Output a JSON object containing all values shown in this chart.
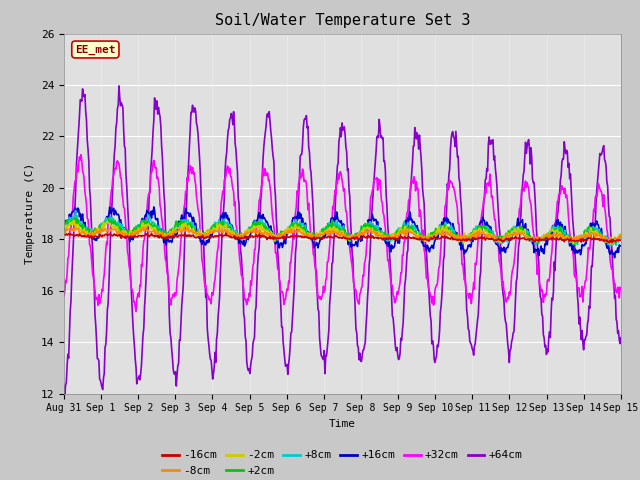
{
  "title": "Soil/Water Temperature Set 3",
  "xlabel": "Time",
  "ylabel": "Temperature (C)",
  "ylim": [
    12,
    26
  ],
  "yticks": [
    12,
    14,
    16,
    18,
    20,
    22,
    24,
    26
  ],
  "fig_facecolor": "#c8c8c8",
  "ax_facecolor": "#e0e0e0",
  "annotation_text": "EE_met",
  "annotation_bg": "#ffffcc",
  "annotation_border": "#cc0000",
  "series": {
    "-16cm": {
      "color": "#cc0000",
      "lw": 1.2
    },
    "-8cm": {
      "color": "#ff8800",
      "lw": 1.2
    },
    "-2cm": {
      "color": "#cccc00",
      "lw": 1.2
    },
    "+2cm": {
      "color": "#00cc00",
      "lw": 1.2
    },
    "+8cm": {
      "color": "#00cccc",
      "lw": 1.2
    },
    "+16cm": {
      "color": "#0000cc",
      "lw": 1.2
    },
    "+32cm": {
      "color": "#ff00ff",
      "lw": 1.2
    },
    "+64cm": {
      "color": "#8800cc",
      "lw": 1.2
    }
  },
  "xtick_labels": [
    "Aug 31",
    "Sep 1",
    "Sep 2",
    "Sep 3",
    "Sep 4",
    "Sep 5",
    "Sep 6",
    "Sep 7",
    "Sep 8",
    "Sep 9",
    "Sep 10",
    "Sep 11",
    "Sep 12",
    "Sep 13",
    "Sep 14",
    "Sep 15"
  ]
}
